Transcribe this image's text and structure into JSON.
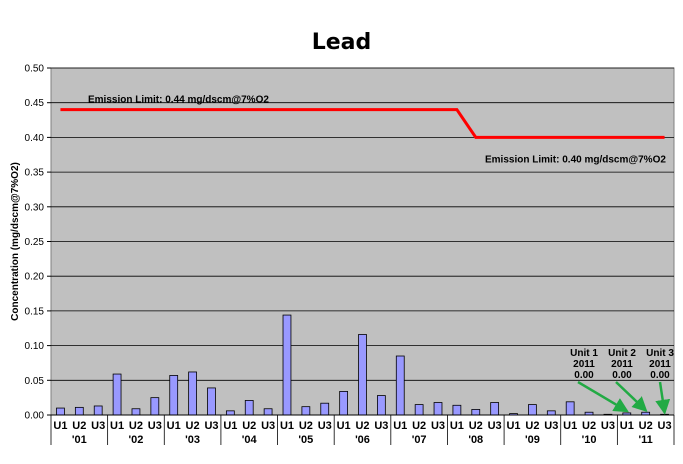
{
  "chart_data": {
    "type": "bar",
    "title": "Lead",
    "ylabel": "Concentration (mg/dscm@7%O2)",
    "xlabel": "",
    "ylim": [
      0,
      0.5
    ],
    "yticks": [
      "0.00",
      "0.05",
      "0.10",
      "0.15",
      "0.20",
      "0.25",
      "0.30",
      "0.35",
      "0.40",
      "0.45",
      "0.50"
    ],
    "grid": true,
    "categories": [
      "U1",
      "U2",
      "U3",
      "U1",
      "U2",
      "U3",
      "U1",
      "U2",
      "U3",
      "U1",
      "U2",
      "U3",
      "U1",
      "U2",
      "U3",
      "U1",
      "U2",
      "U3",
      "U1",
      "U2",
      "U3",
      "U1",
      "U2",
      "U3",
      "U1",
      "U2",
      "U3",
      "U1",
      "U2",
      "U3",
      "U1",
      "U2",
      "U3"
    ],
    "year_groups": [
      "'01",
      "'02",
      "'03",
      "'04",
      "'05",
      "'06",
      "'07",
      "'08",
      "'09",
      "'10",
      "'11"
    ],
    "values": [
      0.01,
      0.011,
      0.013,
      0.059,
      0.009,
      0.025,
      0.057,
      0.062,
      0.039,
      0.006,
      0.021,
      0.009,
      0.144,
      0.012,
      0.017,
      0.034,
      0.116,
      0.028,
      0.085,
      0.015,
      0.018,
      0.014,
      0.008,
      0.018,
      0.002,
      0.015,
      0.006,
      0.019,
      0.004,
      0.001,
      0.003,
      0.004,
      0.001
    ],
    "bar_color": "#9999ff",
    "limit_line": {
      "color": "#ff0000",
      "points": [
        [
          1,
          0.44
        ],
        [
          22,
          0.44
        ],
        [
          23,
          0.4
        ],
        [
          33,
          0.4
        ]
      ],
      "labels": [
        "Emission  Limit: 0.44 mg/dscm@7%O2",
        "Emission Limit: 0.40 mg/dscm@7%O2"
      ]
    },
    "annotations": [
      {
        "lines": [
          "Unit 1",
          "2011",
          "0.00"
        ],
        "target_index": 30
      },
      {
        "lines": [
          "Unit 2",
          "2011",
          "0.00"
        ],
        "target_index": 31
      },
      {
        "lines": [
          "Unit 3",
          "2011",
          "0.00"
        ],
        "target_index": 32
      }
    ],
    "arrow_color": "#22aa44"
  }
}
